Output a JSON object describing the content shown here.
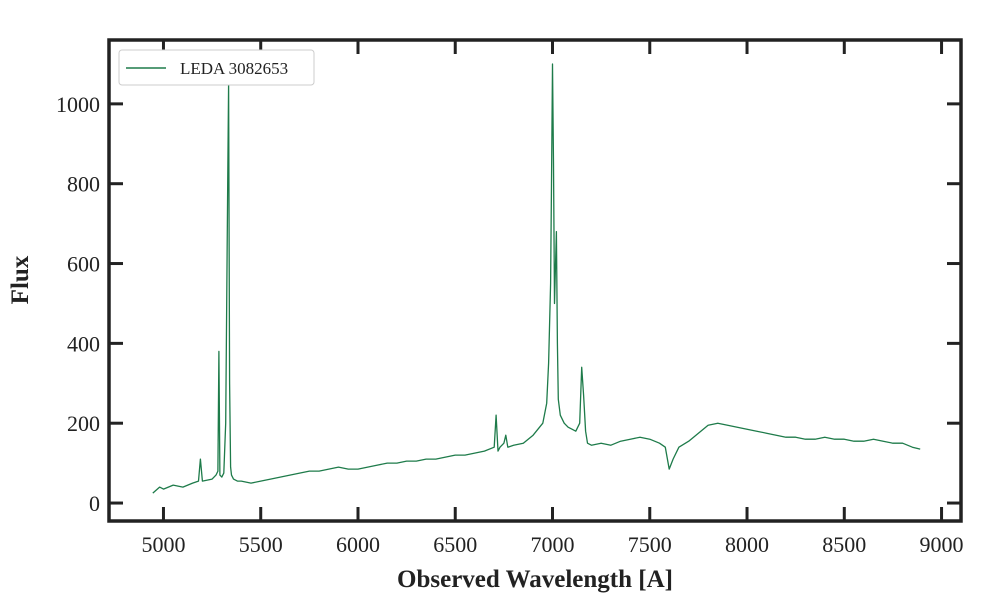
{
  "chart_data": {
    "type": "line",
    "title": "",
    "xlabel": "Observed Wavelength [A]",
    "ylabel": "Flux",
    "xlim": [
      4720,
      9100
    ],
    "ylim": [
      -45,
      1160
    ],
    "x_ticks": [
      5000,
      5500,
      6000,
      6500,
      7000,
      7500,
      8000,
      8500,
      9000
    ],
    "y_ticks": [
      0,
      200,
      400,
      600,
      800,
      1000
    ],
    "x_tick_labels": [
      "5000",
      "5500",
      "6000",
      "6500",
      "7000",
      "7500",
      "8000",
      "8500",
      "9000"
    ],
    "y_tick_labels": [
      "0",
      "200",
      "400",
      "600",
      "800",
      "1000"
    ],
    "grid": false,
    "legend_position": "top-left",
    "series": [
      {
        "name": "LEDA 3082653",
        "color": "#1e7b4a",
        "x": [
          4945,
          4980,
          5000,
          5050,
          5100,
          5150,
          5180,
          5190,
          5200,
          5250,
          5270,
          5280,
          5285,
          5290,
          5300,
          5310,
          5320,
          5330,
          5335,
          5340,
          5345,
          5350,
          5360,
          5380,
          5400,
          5450,
          5500,
          5550,
          5600,
          5650,
          5700,
          5750,
          5800,
          5850,
          5900,
          5950,
          6000,
          6050,
          6100,
          6150,
          6200,
          6250,
          6300,
          6350,
          6400,
          6450,
          6500,
          6550,
          6600,
          6650,
          6700,
          6710,
          6720,
          6730,
          6750,
          6760,
          6770,
          6800,
          6850,
          6900,
          6950,
          6970,
          6980,
          6990,
          6995,
          7000,
          7005,
          7010,
          7020,
          7025,
          7030,
          7040,
          7060,
          7080,
          7100,
          7120,
          7140,
          7150,
          7160,
          7170,
          7180,
          7200,
          7250,
          7300,
          7350,
          7400,
          7450,
          7500,
          7550,
          7580,
          7600,
          7620,
          7650,
          7700,
          7750,
          7800,
          7850,
          7900,
          7950,
          8000,
          8050,
          8100,
          8150,
          8200,
          8250,
          8300,
          8350,
          8400,
          8450,
          8500,
          8550,
          8600,
          8650,
          8700,
          8750,
          8800,
          8850,
          8890
        ],
        "y": [
          25,
          40,
          35,
          45,
          40,
          50,
          55,
          110,
          55,
          60,
          70,
          80,
          380,
          70,
          65,
          75,
          200,
          800,
          1050,
          300,
          90,
          70,
          60,
          55,
          55,
          50,
          55,
          60,
          65,
          70,
          75,
          80,
          80,
          85,
          90,
          85,
          85,
          90,
          95,
          100,
          100,
          105,
          105,
          110,
          110,
          115,
          120,
          120,
          125,
          130,
          140,
          220,
          130,
          140,
          150,
          170,
          140,
          145,
          150,
          170,
          200,
          250,
          350,
          550,
          800,
          1100,
          850,
          500,
          680,
          400,
          260,
          220,
          200,
          190,
          185,
          180,
          200,
          340,
          270,
          180,
          150,
          145,
          150,
          145,
          155,
          160,
          165,
          160,
          150,
          140,
          85,
          110,
          140,
          155,
          175,
          195,
          200,
          195,
          190,
          185,
          180,
          175,
          170,
          165,
          165,
          160,
          160,
          165,
          160,
          160,
          155,
          155,
          160,
          155,
          150,
          150,
          140,
          135
        ]
      }
    ]
  }
}
